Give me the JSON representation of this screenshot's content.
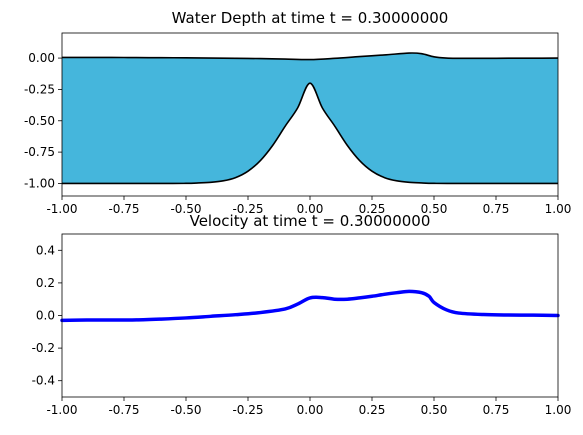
{
  "chart_data": [
    {
      "type": "area",
      "title": "Water Depth at time t =     0.30000000",
      "xlim": [
        -1.0,
        1.0
      ],
      "ylim": [
        -1.1,
        0.2
      ],
      "x_ticks": [
        "-1.00",
        "-0.75",
        "-0.50",
        "-0.25",
        "0.00",
        "0.25",
        "0.50",
        "0.75",
        "1.00"
      ],
      "y_ticks": [
        "0.00",
        "-0.25",
        "-0.50",
        "-0.75",
        "-1.00"
      ],
      "fill_color": "#45b6dc",
      "line_color": "#000000",
      "series": [
        {
          "x": [
            -1.0,
            -0.9,
            -0.8,
            -0.7,
            -0.6,
            -0.5,
            -0.4,
            -0.3,
            -0.2,
            -0.1,
            0.0,
            0.1,
            0.2,
            0.3,
            0.4,
            0.45,
            0.5,
            0.55,
            0.6,
            0.7,
            0.8,
            0.9,
            1.0
          ],
          "y": [
            0.005,
            0.005,
            0.005,
            0.004,
            0.003,
            0.002,
            0.0,
            -0.002,
            -0.004,
            -0.008,
            -0.012,
            -0.002,
            0.012,
            0.025,
            0.04,
            0.035,
            0.01,
            0.0,
            -0.002,
            -0.002,
            -0.001,
            -0.001,
            0.0
          ]
        },
        {
          "x": [
            -1.0,
            -0.6,
            -0.5,
            -0.45,
            -0.4,
            -0.35,
            -0.3,
            -0.25,
            -0.2,
            -0.15,
            -0.1,
            -0.05,
            0.0,
            0.05,
            0.1,
            0.15,
            0.2,
            0.25,
            0.3,
            0.35,
            0.4,
            0.45,
            0.5,
            0.6,
            1.0
          ],
          "y": [
            -1.0,
            -1.0,
            -0.999,
            -0.996,
            -0.991,
            -0.979,
            -0.953,
            -0.902,
            -0.817,
            -0.695,
            -0.543,
            -0.398,
            -0.2,
            -0.398,
            -0.543,
            -0.695,
            -0.817,
            -0.902,
            -0.953,
            -0.979,
            -0.991,
            -0.996,
            -0.999,
            -1.0,
            -1.0
          ]
        }
      ]
    },
    {
      "type": "line",
      "title": "Velocity at time t =     0.30000000",
      "xlim": [
        -1.0,
        1.0
      ],
      "ylim": [
        -0.5,
        0.5
      ],
      "x_ticks": [
        "-1.00",
        "-0.75",
        "-0.50",
        "-0.25",
        "0.00",
        "0.25",
        "0.50",
        "0.75",
        "1.00"
      ],
      "y_ticks": [
        "0.4",
        "0.2",
        "0.0",
        "-0.2",
        "-0.4"
      ],
      "line_color": "#0000ff",
      "series": [
        {
          "x": [
            -1.0,
            -0.9,
            -0.8,
            -0.7,
            -0.6,
            -0.5,
            -0.4,
            -0.3,
            -0.2,
            -0.1,
            -0.05,
            0.0,
            0.05,
            0.1,
            0.15,
            0.2,
            0.25,
            0.3,
            0.35,
            0.4,
            0.45,
            0.48,
            0.5,
            0.55,
            0.6,
            0.7,
            0.8,
            0.9,
            1.0
          ],
          "y": [
            -0.03,
            -0.028,
            -0.028,
            -0.027,
            -0.022,
            -0.015,
            -0.005,
            0.005,
            0.018,
            0.04,
            0.07,
            0.108,
            0.11,
            0.1,
            0.1,
            0.108,
            0.118,
            0.13,
            0.14,
            0.148,
            0.14,
            0.118,
            0.08,
            0.035,
            0.015,
            0.006,
            0.003,
            0.002,
            0.0
          ]
        }
      ]
    }
  ]
}
